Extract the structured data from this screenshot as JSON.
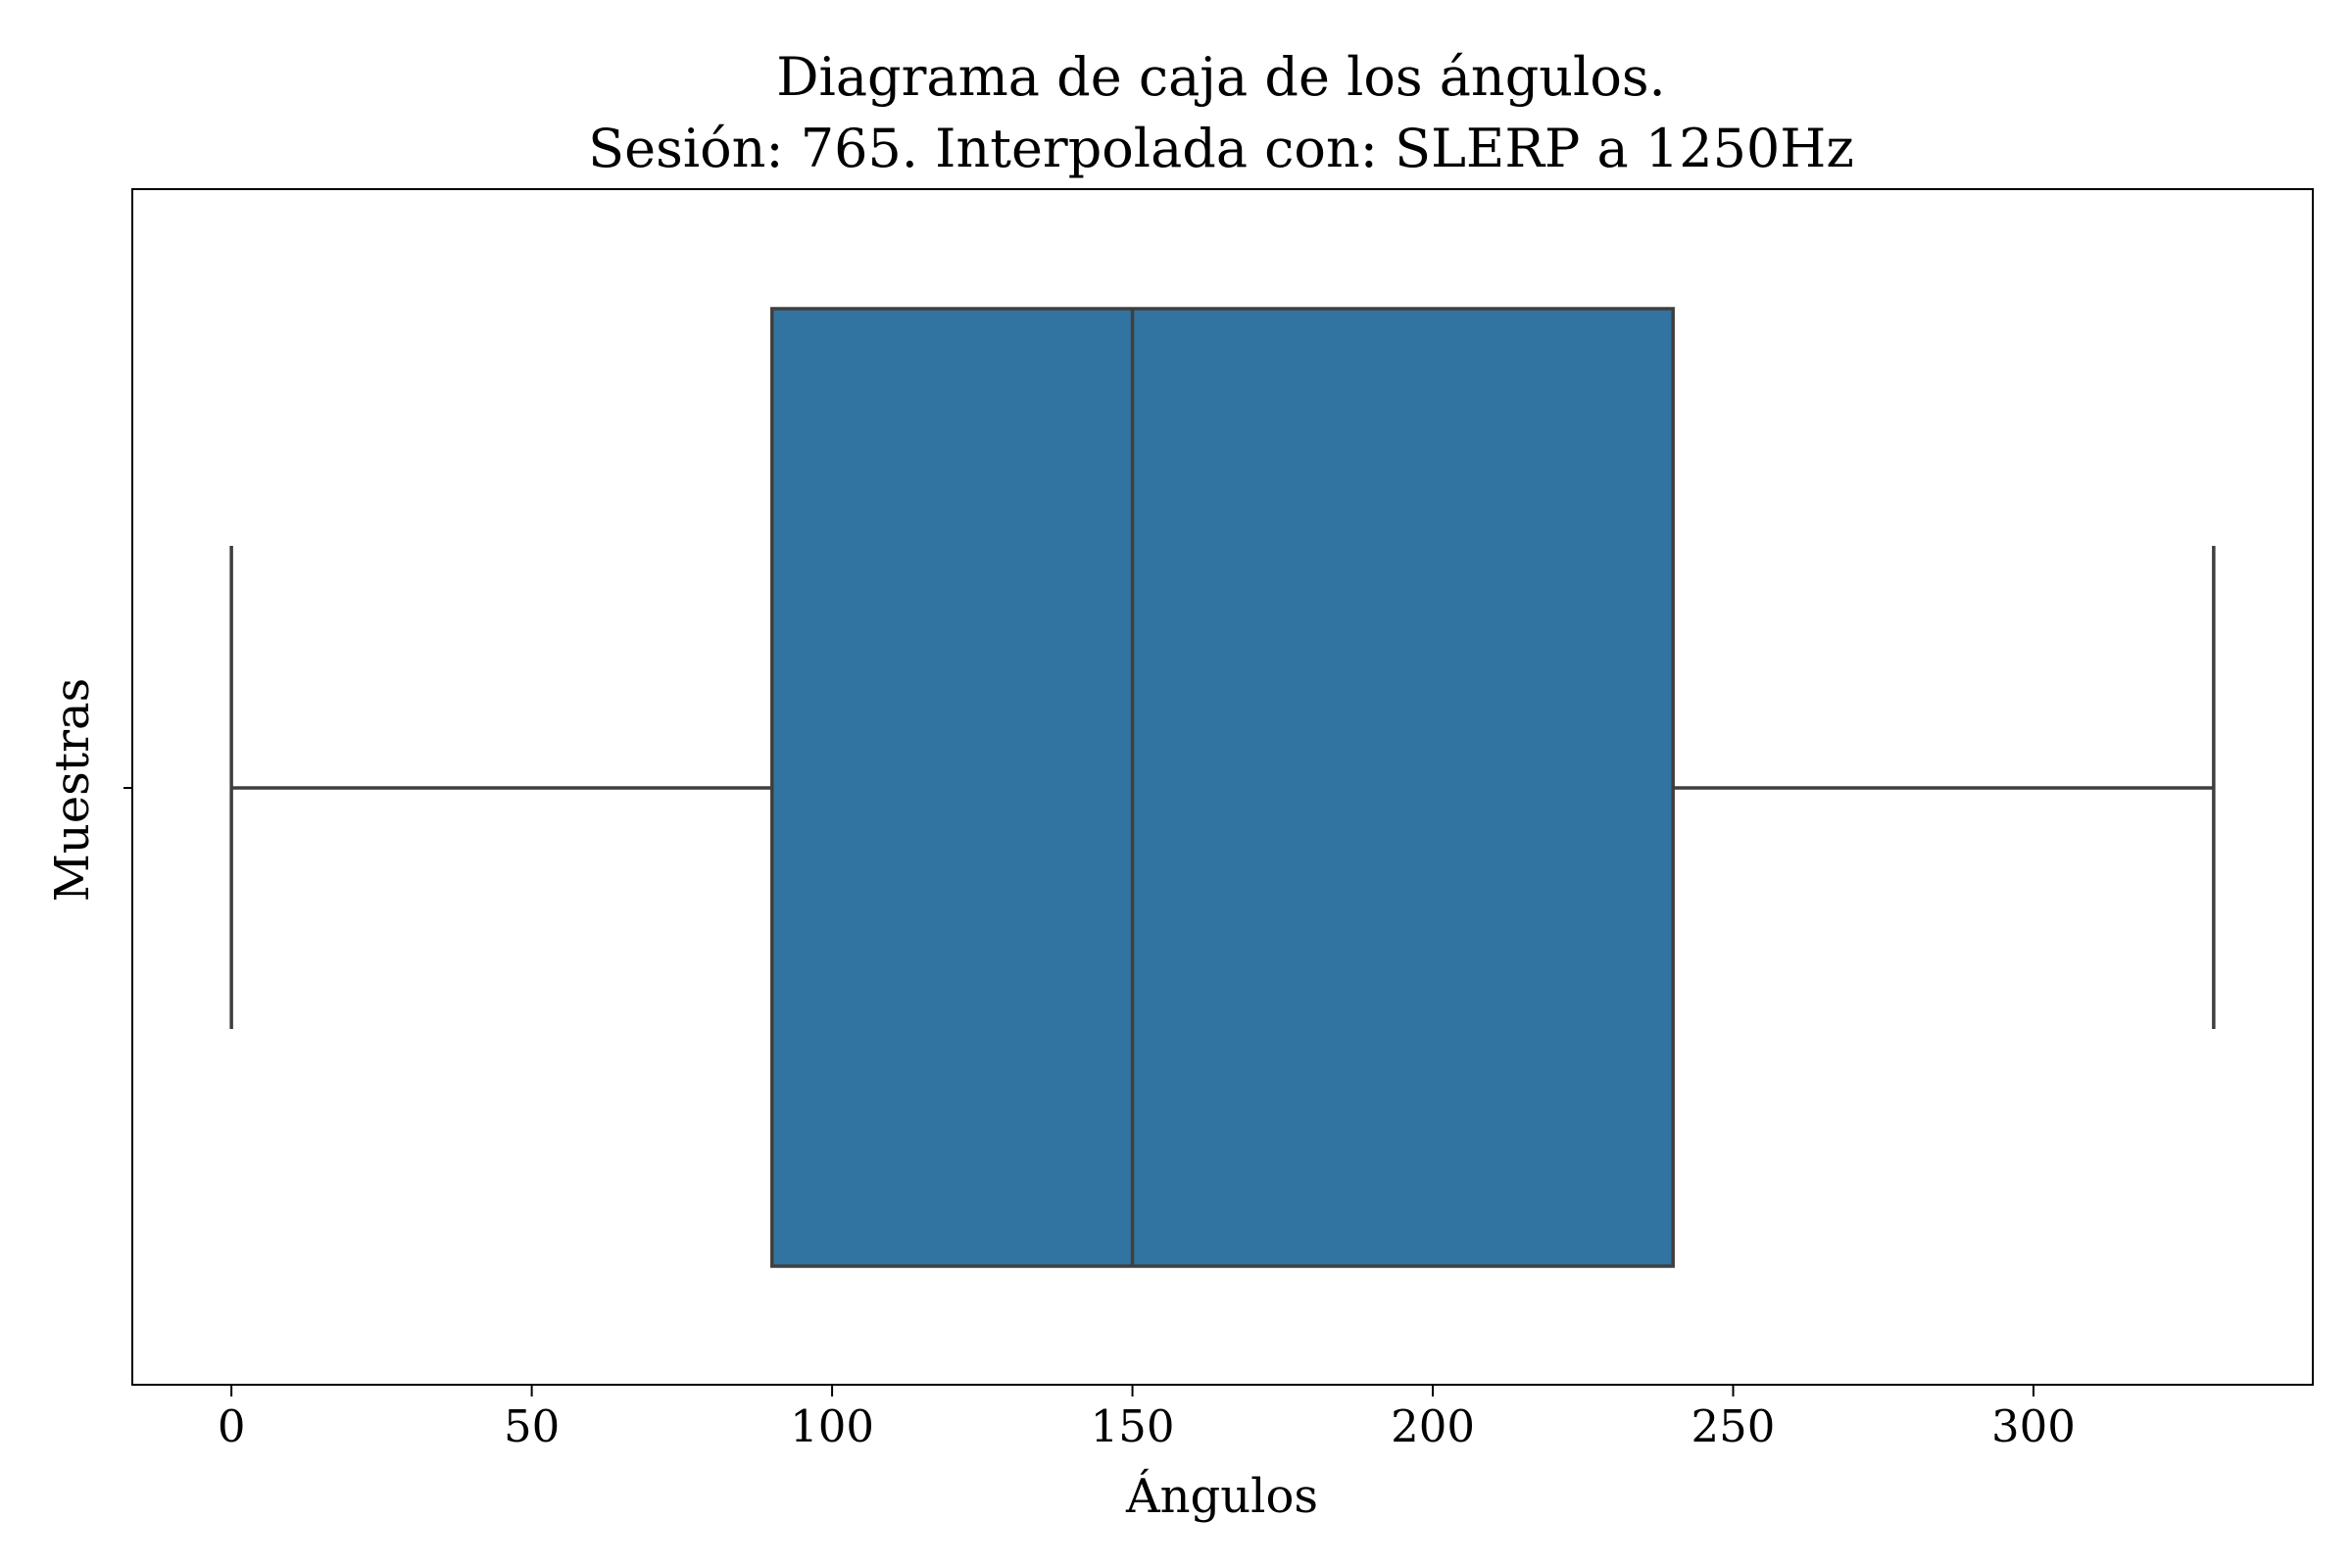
{
  "chart_data": {
    "type": "box",
    "title": "Diagrama de caja de los ángulos.",
    "subtitle": "Sesión: 765. Interpolada con: SLERP a 1250Hz",
    "xlabel": "Ángulos",
    "ylabel": "Muestras",
    "xlim": [
      -16.5,
      346.5
    ],
    "xticks": [
      0,
      50,
      100,
      150,
      200,
      250,
      300
    ],
    "tick_labels": [
      "0",
      "50",
      "100",
      "150",
      "200",
      "250",
      "300"
    ],
    "grid": false,
    "orientation": "horizontal",
    "box": {
      "whisker_low": 0,
      "q1": 90,
      "median": 150,
      "q3": 240,
      "whisker_high": 330
    },
    "colors": {
      "box_fill": "#3274a1",
      "line": "#3f3f3f",
      "axes": "#000000"
    }
  }
}
